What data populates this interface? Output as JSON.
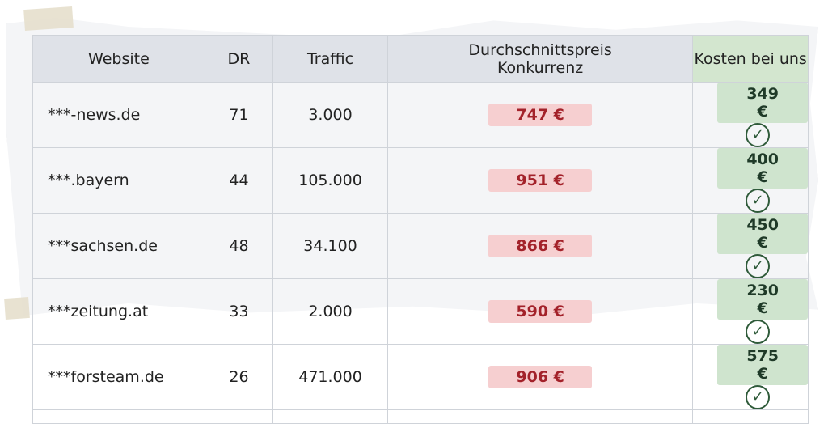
{
  "headers": [
    "Website",
    "DR",
    "Traffic",
    "Durchschnittspreis Konkurrenz",
    "Kosten bei uns"
  ],
  "rows": [
    {
      "website": "***-news.de",
      "dr": "71",
      "traffic": "3.000",
      "competitor": "747 €",
      "ours": "349 €"
    },
    {
      "website": "***.bayern",
      "dr": "44",
      "traffic": "105.000",
      "competitor": "951 €",
      "ours": "400 €"
    },
    {
      "website": "***sachsen.de",
      "dr": "48",
      "traffic": "34.100",
      "competitor": "866 €",
      "ours": "450 €"
    },
    {
      "website": "***zeitung.at",
      "dr": "33",
      "traffic": "2.000",
      "competitor": "590 €",
      "ours": "230 €"
    },
    {
      "website": "***forsteam.de",
      "dr": "26",
      "traffic": "471.000",
      "competitor": "906 €",
      "ours": "575 €"
    }
  ],
  "check_icon": "check-circle-icon",
  "colors": {
    "competitor_highlight": "#f6cfd0",
    "competitor_text": "#a3222a",
    "ours_highlight": "#cfe4ce",
    "ours_header": "#d3e6cf"
  }
}
